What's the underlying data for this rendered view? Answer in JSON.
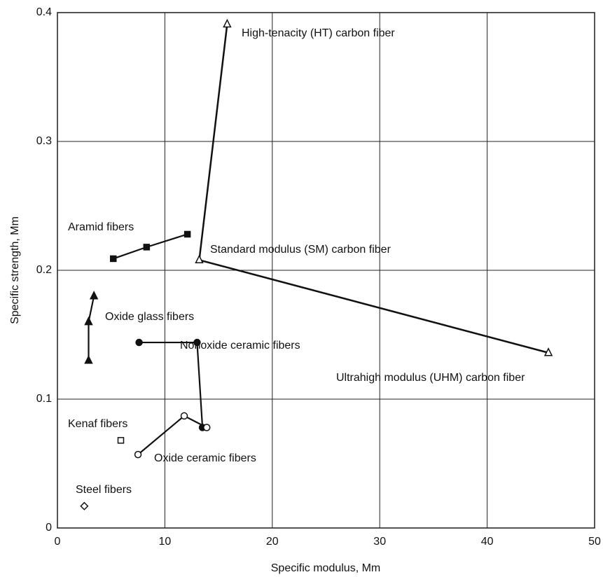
{
  "chart_data": {
    "type": "line",
    "x_label": "Specific modulus, Mm",
    "y_label": "Specific strength, Mm",
    "xlim": [
      0,
      50
    ],
    "xticks": [
      0,
      10,
      20,
      30,
      40,
      50
    ],
    "ylim": [
      0,
      0.4
    ],
    "yticks": [
      0,
      0.1,
      0.2,
      0.3,
      0.4
    ],
    "grid": true,
    "color": "#111111",
    "series": [
      {
        "point_labels": [
          "High-tenacity (HT) carbon fiber",
          "Standard modulus (SM) carbon fiber",
          "Ultrahigh modulus (UHM) carbon fiber"
        ],
        "marker": "triangle-open",
        "x": [
          15.8,
          13.2,
          45.7
        ],
        "values": [
          0.391,
          0.208,
          0.136
        ]
      },
      {
        "name": "Aramid fibers",
        "marker": "square-filled",
        "x": [
          5.2,
          8.3,
          12.1
        ],
        "values": [
          0.209,
          0.218,
          0.228
        ]
      },
      {
        "name": "Oxide glass fibers",
        "marker": "triangle-filled",
        "x": [
          2.9,
          2.9,
          3.4
        ],
        "values": [
          0.13,
          0.16,
          0.18
        ]
      },
      {
        "name": "Nonoxide ceramic fibers",
        "marker": "circle-filled",
        "x": [
          7.6,
          13.0,
          13.5
        ],
        "values": [
          0.144,
          0.144,
          0.078
        ]
      },
      {
        "name": "Oxide ceramic fibers",
        "marker": "circle-open",
        "x": [
          7.5,
          11.8,
          13.9
        ],
        "values": [
          0.057,
          0.087,
          0.078
        ]
      },
      {
        "name": "Kenaf fibers",
        "marker": "square-open",
        "x": [
          5.9
        ],
        "values": [
          0.068
        ]
      },
      {
        "name": "Steel fibers",
        "marker": "diamond-open",
        "x": [
          2.5
        ],
        "values": [
          0.017
        ]
      }
    ]
  }
}
